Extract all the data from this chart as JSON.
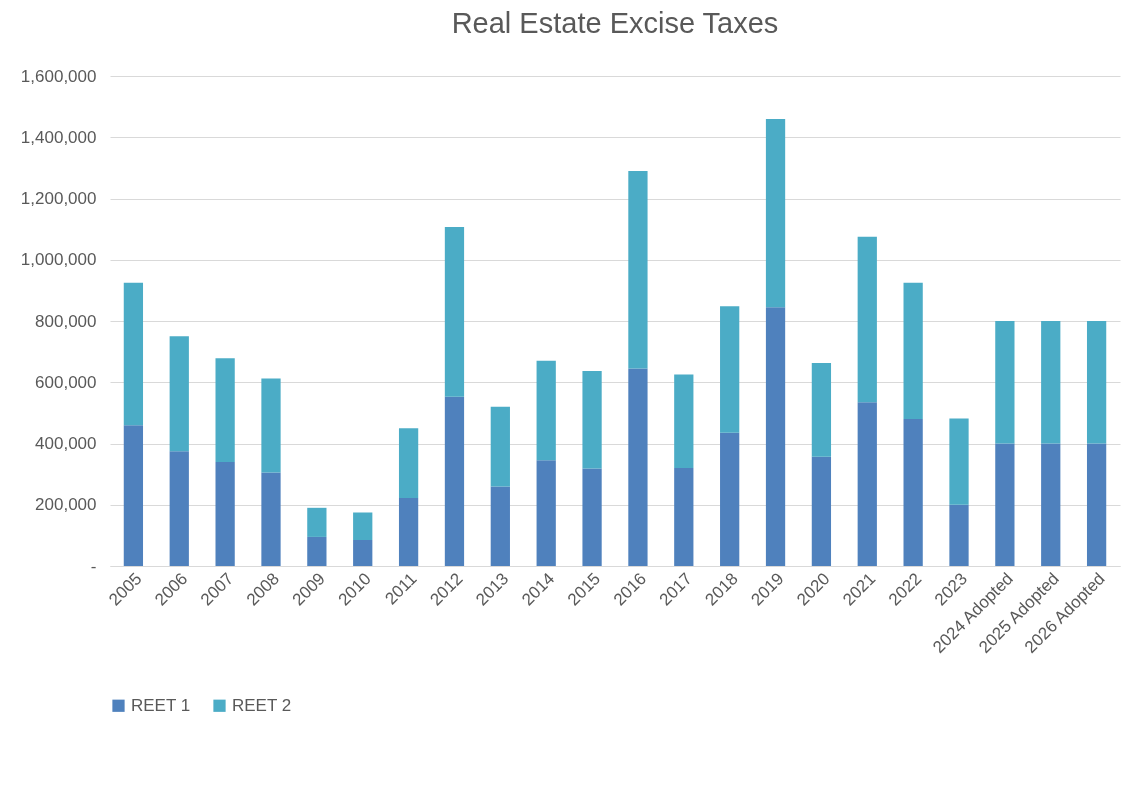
{
  "chart_data": {
    "type": "bar",
    "title": "Real Estate Excise Taxes",
    "stacked": true,
    "grid": "y",
    "legend": "bottom",
    "categories": [
      "2005",
      "2006",
      "2007",
      "2008",
      "2009",
      "2010",
      "2011",
      "2012",
      "2013",
      "2014",
      "2015",
      "2016",
      "2017",
      "2018",
      "2019",
      "2020",
      "2021",
      "2022",
      "2023",
      "2024 Adopted",
      "2025 Adopted",
      "2026 Adopted"
    ],
    "series": [
      {
        "name": "REET 1",
        "color": "#4f81bd",
        "values": [
          460000,
          375000,
          340000,
          305000,
          95000,
          85000,
          222000,
          553000,
          260000,
          345000,
          318000,
          645000,
          320000,
          435000,
          845000,
          357000,
          535000,
          480000,
          200000,
          400000,
          400000,
          400000
        ]
      },
      {
        "name": "REET 2",
        "color": "#4bacc6",
        "values": [
          465000,
          375000,
          338000,
          307000,
          95000,
          90000,
          228000,
          554000,
          260000,
          325000,
          319000,
          645000,
          305000,
          413000,
          615000,
          306000,
          540000,
          445000,
          282000,
          400000,
          400000,
          400000
        ]
      }
    ],
    "ylim": [
      0,
      1600000
    ],
    "yticks": [
      {
        "value": 0,
        "label": "-"
      },
      {
        "value": 200000,
        "label": "200,000"
      },
      {
        "value": 400000,
        "label": "400,000"
      },
      {
        "value": 600000,
        "label": "600,000"
      },
      {
        "value": 800000,
        "label": "800,000"
      },
      {
        "value": 1000000,
        "label": "1,000,000"
      },
      {
        "value": 1200000,
        "label": "1,200,000"
      },
      {
        "value": 1400000,
        "label": "1,400,000"
      },
      {
        "value": 1600000,
        "label": "1,600,000"
      }
    ]
  }
}
